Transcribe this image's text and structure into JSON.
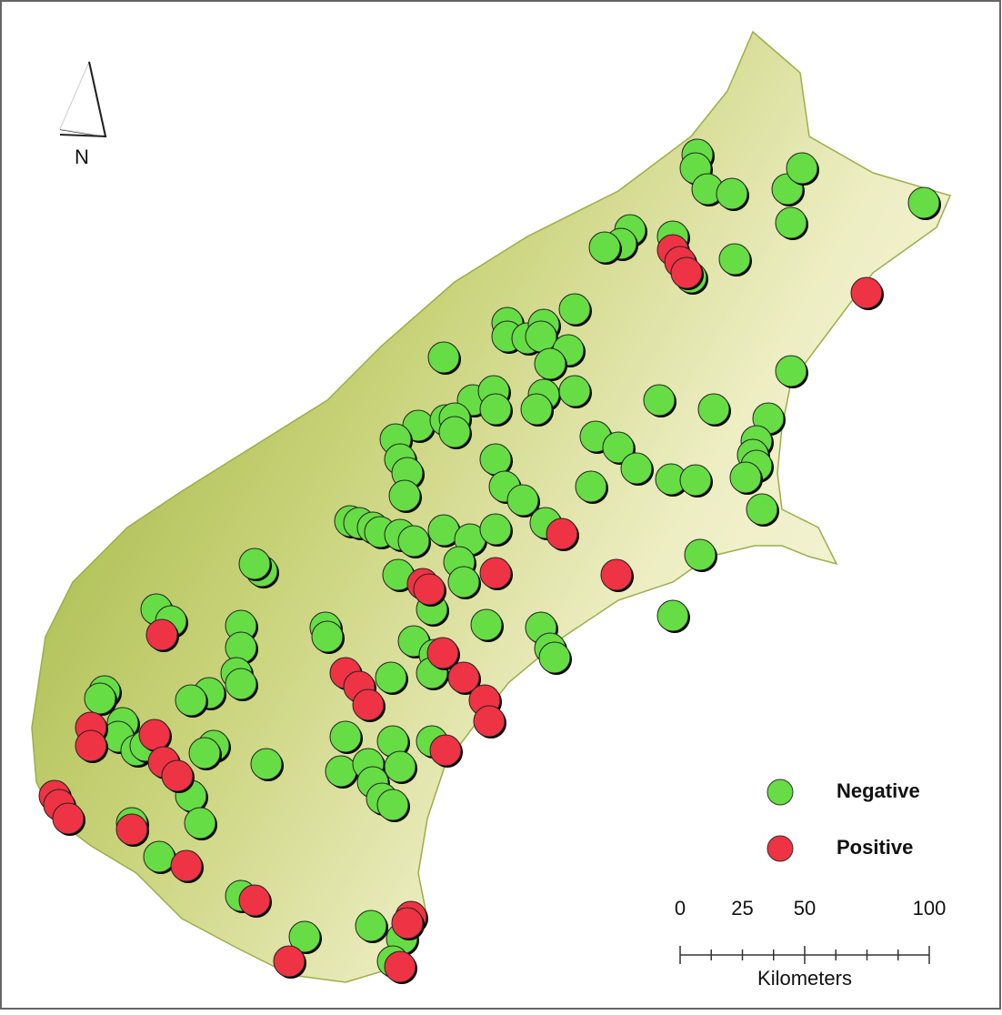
{
  "north_label": "N",
  "legend": {
    "items": [
      {
        "label": "Negative",
        "color": "#66dd44"
      },
      {
        "label": "Positive",
        "color": "#ee3344"
      }
    ]
  },
  "scale_bar": {
    "ticks": [
      0,
      25,
      50,
      100
    ],
    "max": 100,
    "unit": "Kilometers"
  }
}
